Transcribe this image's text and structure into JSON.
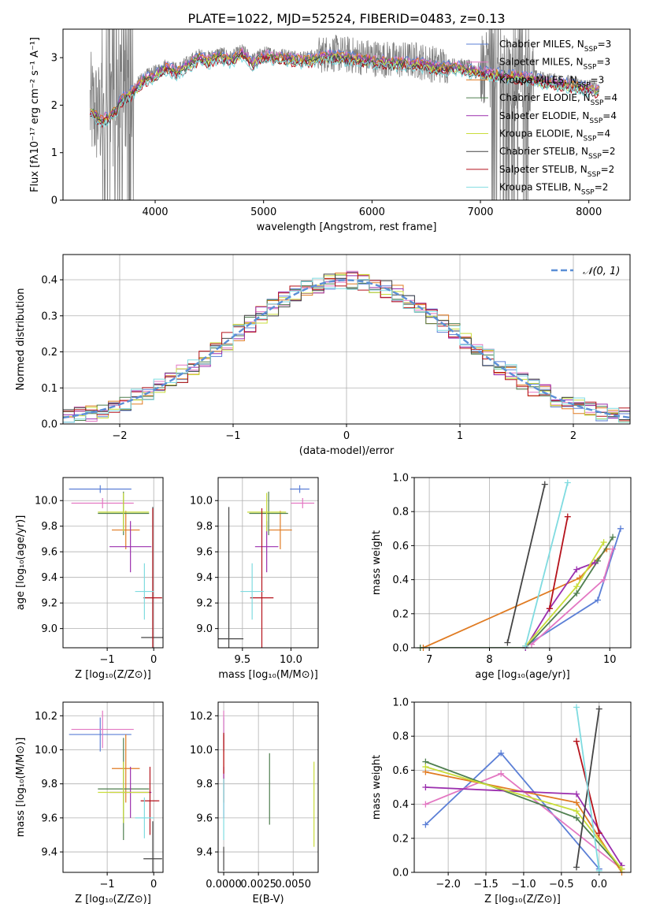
{
  "chart_data": [
    {
      "id": "spectrum",
      "type": "line",
      "title": "PLATE=1022, MJD=52524, FIBERID=0483, z=0.13",
      "xlabel": "wavelength [Angstrom, rest frame]",
      "ylabel": "Flux [fλ10⁻¹⁷ erg cm⁻² s⁻¹ A⁻¹]",
      "xlim": [
        3150,
        8380
      ],
      "ylim": [
        0,
        3.6
      ],
      "xticks": [
        4000,
        5000,
        6000,
        7000,
        8000
      ],
      "yticks": [
        0,
        1,
        2,
        3
      ],
      "grid": false,
      "legend_position": "top-right",
      "data_color": "#808080",
      "legend": [
        {
          "label": "Chabrier MILES, N",
          "sub": "SSP",
          "suffix": "=3",
          "color": "#5b7fd6"
        },
        {
          "label": "Salpeter MILES, N",
          "sub": "SSP",
          "suffix": "=3",
          "color": "#e377c2"
        },
        {
          "label": "Kroupa MILES, N",
          "sub": "SSP",
          "suffix": "=3",
          "color": "#e07b22"
        },
        {
          "label": "Chabrier ELODIE, N",
          "sub": "SSP",
          "suffix": "=4",
          "color": "#4f7f4f"
        },
        {
          "label": "Salpeter ELODIE, N",
          "sub": "SSP",
          "suffix": "=4",
          "color": "#9b2fae"
        },
        {
          "label": "Kroupa ELODIE, N",
          "sub": "SSP",
          "suffix": "=4",
          "color": "#c9dd3a"
        },
        {
          "label": "Chabrier STELIB, N",
          "sub": "SSP",
          "suffix": "=2",
          "color": "#444444"
        },
        {
          "label": "Salpeter STELIB, N",
          "sub": "SSP",
          "suffix": "=2",
          "color": "#b5121b"
        },
        {
          "label": "Kroupa STELIB, N",
          "sub": "SSP",
          "suffix": "=2",
          "color": "#7fdbe0"
        }
      ],
      "continuum_points": [
        [
          3400,
          1.95
        ],
        [
          3500,
          1.75
        ],
        [
          3600,
          1.85
        ],
        [
          3700,
          2.2
        ],
        [
          3800,
          2.35
        ],
        [
          3900,
          2.6
        ],
        [
          4000,
          2.7
        ],
        [
          4100,
          2.85
        ],
        [
          4200,
          2.75
        ],
        [
          4300,
          2.9
        ],
        [
          4400,
          3.05
        ],
        [
          4500,
          3.0
        ],
        [
          4600,
          3.1
        ],
        [
          4700,
          3.0
        ],
        [
          4800,
          3.15
        ],
        [
          4900,
          2.95
        ],
        [
          5000,
          3.1
        ],
        [
          5200,
          3.05
        ],
        [
          5400,
          3.0
        ],
        [
          5600,
          3.1
        ],
        [
          5800,
          3.05
        ],
        [
          6000,
          3.0
        ],
        [
          6200,
          2.95
        ],
        [
          6400,
          2.95
        ],
        [
          6600,
          2.85
        ],
        [
          6800,
          2.85
        ],
        [
          7000,
          2.75
        ],
        [
          7200,
          2.7
        ],
        [
          7400,
          2.65
        ],
        [
          7600,
          2.55
        ],
        [
          7800,
          2.5
        ],
        [
          8000,
          2.4
        ],
        [
          8100,
          2.35
        ]
      ]
    },
    {
      "id": "residuals",
      "type": "line",
      "xlabel": "(data-model)/error",
      "ylabel": "Normed distribution",
      "xlim": [
        -2.5,
        2.5
      ],
      "ylim": [
        0,
        0.47
      ],
      "xticks": [
        -2,
        -1,
        0,
        1,
        2
      ],
      "yticks": [
        0.0,
        0.1,
        0.2,
        0.3,
        0.4
      ],
      "grid": true,
      "legend_position": "top-right",
      "legend": [
        {
          "label": "𝒩(0, 1)",
          "color": "#5b8fd6",
          "style": "dashed"
        }
      ],
      "bin_width": 0.1,
      "series_colors": [
        "#5b7fd6",
        "#e377c2",
        "#e07b22",
        "#4f7f4f",
        "#9b2fae",
        "#c9dd3a",
        "#444444",
        "#b5121b",
        "#7fdbe0"
      ]
    },
    {
      "id": "age-vs-Z",
      "type": "scatter",
      "xlabel": "Z [log₁₀(Z/Z⊙)]",
      "ylabel": "age  [log₁₀(age/yr)]",
      "xlim": [
        -1.95,
        0.2
      ],
      "ylim": [
        8.85,
        10.18
      ],
      "xticks": [
        -1,
        0
      ],
      "yticks": [
        9.0,
        9.2,
        9.4,
        9.6,
        9.8,
        10.0
      ],
      "grid": true,
      "points": [
        {
          "x": -1.15,
          "y": 10.09,
          "xerr": 0.67,
          "yerr": 0.03,
          "color": "#5b7fd6"
        },
        {
          "x": -1.1,
          "y": 9.98,
          "xerr": 0.67,
          "yerr": 0.04,
          "color": "#e377c2"
        },
        {
          "x": -0.6,
          "y": 9.77,
          "xerr": 0.3,
          "yerr": 0.15,
          "color": "#e07b22"
        },
        {
          "x": -0.65,
          "y": 9.9,
          "xerr": 0.55,
          "yerr": 0.17,
          "color": "#4f7f4f"
        },
        {
          "x": -0.5,
          "y": 9.64,
          "xerr": 0.45,
          "yerr": 0.2,
          "color": "#9b2fae"
        },
        {
          "x": -0.65,
          "y": 9.91,
          "xerr": 0.55,
          "yerr": 0.15,
          "color": "#c9dd3a"
        },
        {
          "x": -0.02,
          "y": 8.93,
          "xerr": 0.25,
          "yerr": 1.02,
          "color": "#444444"
        },
        {
          "x": -0.02,
          "y": 9.24,
          "xerr": 0.2,
          "yerr": 0.7,
          "color": "#b5121b"
        },
        {
          "x": -0.2,
          "y": 9.29,
          "xerr": 0.2,
          "yerr": 0.22,
          "color": "#7fdbe0"
        }
      ]
    },
    {
      "id": "age-vs-mass",
      "type": "scatter",
      "xlabel": "mass [log₁₀(M/M⊙)]",
      "ylabel": "",
      "xlim": [
        9.25,
        10.28
      ],
      "ylim": [
        8.85,
        10.18
      ],
      "xticks": [
        9.5,
        10.0
      ],
      "yticks": [
        9.0,
        9.2,
        9.4,
        9.6,
        9.8,
        10.0
      ],
      "grid": true,
      "points": [
        {
          "x": 10.09,
          "y": 10.09,
          "xerr": 0.1,
          "yerr": 0.03,
          "color": "#5b7fd6"
        },
        {
          "x": 10.12,
          "y": 9.98,
          "xerr": 0.12,
          "yerr": 0.04,
          "color": "#e377c2"
        },
        {
          "x": 9.89,
          "y": 9.77,
          "xerr": 0.12,
          "yerr": 0.15,
          "color": "#e07b22"
        },
        {
          "x": 9.77,
          "y": 9.9,
          "xerr": 0.2,
          "yerr": 0.17,
          "color": "#4f7f4f"
        },
        {
          "x": 9.75,
          "y": 9.64,
          "xerr": 0.12,
          "yerr": 0.2,
          "color": "#9b2fae"
        },
        {
          "x": 9.75,
          "y": 9.91,
          "xerr": 0.2,
          "yerr": 0.15,
          "color": "#c9dd3a"
        },
        {
          "x": 9.36,
          "y": 8.92,
          "xerr": 0.15,
          "yerr": 1.03,
          "color": "#444444"
        },
        {
          "x": 9.7,
          "y": 9.24,
          "xerr": 0.12,
          "yerr": 0.7,
          "color": "#b5121b"
        },
        {
          "x": 9.6,
          "y": 9.29,
          "xerr": 0.12,
          "yerr": 0.22,
          "color": "#7fdbe0"
        }
      ]
    },
    {
      "id": "weight-vs-age",
      "type": "line",
      "xlabel": "age  [log₁₀(age/yr)]",
      "ylabel": "mass weight",
      "xlim": [
        6.75,
        10.35
      ],
      "ylim": [
        0,
        1.0
      ],
      "xticks": [
        7,
        8,
        9,
        10
      ],
      "yticks": [
        0.0,
        0.2,
        0.4,
        0.6,
        0.8,
        1.0
      ],
      "grid": true,
      "series": [
        {
          "color": "#5b7fd6",
          "x": [
            8.6,
            9.8,
            10.18
          ],
          "y": [
            0.01,
            0.28,
            0.7
          ]
        },
        {
          "color": "#e377c2",
          "x": [
            8.7,
            9.9,
            10.05
          ],
          "y": [
            0.02,
            0.4,
            0.58
          ]
        },
        {
          "color": "#e07b22",
          "x": [
            6.9,
            9.5,
            9.95
          ],
          "y": [
            0.0,
            0.41,
            0.58
          ]
        },
        {
          "color": "#4f7f4f",
          "x": [
            6.85,
            8.6,
            9.45,
            9.8,
            10.05
          ],
          "y": [
            0.0,
            0.0,
            0.32,
            0.51,
            0.65
          ]
        },
        {
          "color": "#9b2fae",
          "x": [
            8.6,
            9.0,
            9.45,
            9.75
          ],
          "y": [
            0.0,
            0.23,
            0.46,
            0.5
          ]
        },
        {
          "color": "#c9dd3a",
          "x": [
            8.6,
            9.45,
            9.9
          ],
          "y": [
            0.01,
            0.36,
            0.62
          ]
        },
        {
          "color": "#444444",
          "x": [
            8.3,
            8.92
          ],
          "y": [
            0.03,
            0.96
          ]
        },
        {
          "color": "#b5121b",
          "x": [
            9.0,
            9.3
          ],
          "y": [
            0.23,
            0.77
          ]
        },
        {
          "color": "#7fdbe0",
          "x": [
            8.6,
            9.3
          ],
          "y": [
            0.01,
            0.97
          ]
        }
      ]
    },
    {
      "id": "mass-vs-Z",
      "type": "scatter",
      "xlabel": "Z [log₁₀(Z/Z⊙)]",
      "ylabel": "mass [log₁₀(M/M⊙)]",
      "xlim": [
        -1.95,
        0.2
      ],
      "ylim": [
        9.28,
        10.28
      ],
      "xticks": [
        -1,
        0
      ],
      "yticks": [
        9.4,
        9.6,
        9.8,
        10.0,
        10.2
      ],
      "grid": true,
      "points": [
        {
          "x": -1.15,
          "y": 10.09,
          "xerr": 0.67,
          "yerr": 0.1,
          "color": "#5b7fd6"
        },
        {
          "x": -1.1,
          "y": 10.12,
          "xerr": 0.67,
          "yerr": 0.11,
          "color": "#e377c2"
        },
        {
          "x": -0.6,
          "y": 9.89,
          "xerr": 0.3,
          "yerr": 0.2,
          "color": "#e07b22"
        },
        {
          "x": -0.65,
          "y": 9.77,
          "xerr": 0.55,
          "yerr": 0.3,
          "color": "#4f7f4f"
        },
        {
          "x": -0.5,
          "y": 9.75,
          "xerr": 0.45,
          "yerr": 0.15,
          "color": "#9b2fae"
        },
        {
          "x": -0.65,
          "y": 9.75,
          "xerr": 0.55,
          "yerr": 0.18,
          "color": "#c9dd3a"
        },
        {
          "x": -0.02,
          "y": 9.36,
          "xerr": 0.2,
          "yerr": 0.22,
          "color": "#444444"
        },
        {
          "x": -0.08,
          "y": 9.7,
          "xerr": 0.2,
          "yerr": 0.2,
          "color": "#b5121b"
        },
        {
          "x": -0.2,
          "y": 9.6,
          "xerr": 0.2,
          "yerr": 0.12,
          "color": "#7fdbe0"
        }
      ]
    },
    {
      "id": "mass-vs-EBV",
      "type": "scatter",
      "xlabel": "E(B-V)",
      "ylabel": "",
      "xlim": [
        -0.0004,
        0.0068
      ],
      "ylim": [
        9.28,
        10.28
      ],
      "xticks": [
        0.0,
        0.0025,
        0.005
      ],
      "xticklabels": [
        "0.0000",
        "0.0025",
        "0.0050"
      ],
      "yticks": [
        9.4,
        9.6,
        9.8,
        10.0,
        10.2
      ],
      "grid": true,
      "points": [
        {
          "x": 0.0,
          "y": 10.09,
          "xerr": 0.0,
          "yerr": 0.1,
          "color": "#5b7fd6"
        },
        {
          "x": 0.0,
          "y": 10.12,
          "xerr": 0.0,
          "yerr": 0.11,
          "color": "#e377c2"
        },
        {
          "x": 0.0,
          "y": 9.89,
          "xerr": 0.0,
          "yerr": 0.2,
          "color": "#e07b22"
        },
        {
          "x": 0.0033,
          "y": 9.77,
          "xerr": 0.0,
          "yerr": 0.21,
          "color": "#4f7f4f"
        },
        {
          "x": 0.0,
          "y": 9.75,
          "xerr": 0.0,
          "yerr": 0.15,
          "color": "#9b2fae"
        },
        {
          "x": 0.0065,
          "y": 9.68,
          "xerr": 0.0,
          "yerr": 0.25,
          "color": "#c9dd3a"
        },
        {
          "x": 0.0,
          "y": 9.36,
          "xerr": 0.0,
          "yerr": 0.07,
          "color": "#444444"
        },
        {
          "x": 0.0,
          "y": 9.98,
          "xerr": 0.0,
          "yerr": 0.12,
          "color": "#b5121b"
        },
        {
          "x": 0.0,
          "y": 9.65,
          "xerr": 0.0,
          "yerr": 0.18,
          "color": "#7fdbe0"
        }
      ]
    },
    {
      "id": "weight-vs-Z",
      "type": "line",
      "xlabel": "Z [log₁₀(Z/Z⊙)]",
      "ylabel": "mass weight",
      "xlim": [
        -2.45,
        0.42
      ],
      "ylim": [
        0,
        1.0
      ],
      "xticks": [
        -2.0,
        -1.5,
        -1.0,
        -0.5,
        0.0
      ],
      "xticklabels": [
        "−2.0",
        "−1.5",
        "−1.0",
        "−0.5",
        "0.0"
      ],
      "yticks": [
        0.0,
        0.2,
        0.4,
        0.6,
        0.8,
        1.0
      ],
      "grid": true,
      "series": [
        {
          "color": "#5b7fd6",
          "x": [
            -2.3,
            -1.3,
            0.0
          ],
          "y": [
            0.28,
            0.7,
            0.02
          ]
        },
        {
          "color": "#e377c2",
          "x": [
            -2.3,
            -1.3,
            0.3
          ],
          "y": [
            0.4,
            0.58,
            0.02
          ]
        },
        {
          "color": "#e07b22",
          "x": [
            -2.3,
            -0.3,
            0.3
          ],
          "y": [
            0.59,
            0.41,
            0.0
          ]
        },
        {
          "color": "#4f7f4f",
          "x": [
            -2.3,
            -0.3,
            0.3
          ],
          "y": [
            0.65,
            0.32,
            0.02
          ]
        },
        {
          "color": "#9b2fae",
          "x": [
            -2.3,
            -0.3,
            0.3
          ],
          "y": [
            0.5,
            0.46,
            0.04
          ]
        },
        {
          "color": "#c9dd3a",
          "x": [
            -2.3,
            -0.3,
            0.3
          ],
          "y": [
            0.62,
            0.36,
            0.02
          ]
        },
        {
          "color": "#444444",
          "x": [
            -0.3,
            0.0
          ],
          "y": [
            0.03,
            0.96
          ]
        },
        {
          "color": "#b5121b",
          "x": [
            -0.3,
            0.0
          ],
          "y": [
            0.77,
            0.23
          ]
        },
        {
          "color": "#7fdbe0",
          "x": [
            -0.3,
            0.0
          ],
          "y": [
            0.97,
            0.01
          ]
        }
      ]
    }
  ]
}
